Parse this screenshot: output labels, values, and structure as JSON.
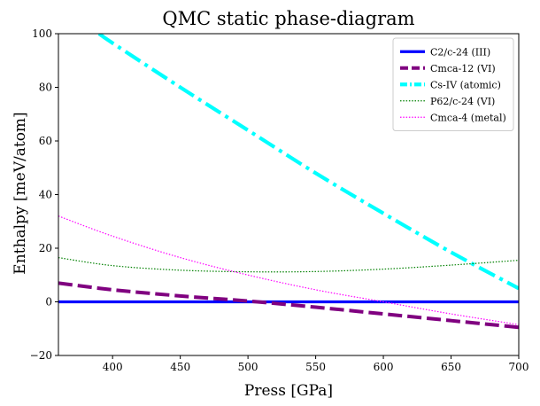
{
  "chart_data": {
    "type": "line",
    "title": "QMC static phase-diagram",
    "xlabel": "Press [GPa]",
    "ylabel": "Enthalpy [meV/atom]",
    "xlim": [
      360,
      700
    ],
    "ylim": [
      -20,
      100
    ],
    "xticks": [
      400,
      450,
      500,
      550,
      600,
      650,
      700
    ],
    "yticks": [
      -20,
      0,
      20,
      40,
      60,
      80,
      100
    ],
    "legend_position": "top-right",
    "series": [
      {
        "name": "C2/c-24 (III)",
        "color": "#0000ff",
        "style": "solid",
        "x": [
          360,
          700
        ],
        "y": [
          0,
          0
        ]
      },
      {
        "name": "Cmca-12 (VI)",
        "color": "#800080",
        "style": "dashed",
        "x": [
          360,
          400,
          450,
          500,
          550,
          600,
          650,
          700
        ],
        "y": [
          7,
          4.5,
          2.2,
          0.3,
          -2,
          -4.5,
          -7,
          -9.5
        ]
      },
      {
        "name": "Cs-IV (atomic)",
        "color": "#00ffff",
        "style": "dashdot",
        "x": [
          390,
          400,
          450,
          500,
          550,
          600,
          650,
          700
        ],
        "y": [
          100,
          96.5,
          80,
          64,
          48,
          33,
          18.5,
          5
        ]
      },
      {
        "name": "P62/c-24 (VI)",
        "color": "#008000",
        "style": "dotted",
        "x": [
          360,
          400,
          450,
          500,
          550,
          600,
          650,
          700
        ],
        "y": [
          16.5,
          13.5,
          11.8,
          11.2,
          11.3,
          12.2,
          13.7,
          15.5
        ]
      },
      {
        "name": "Cmca-4 (metal)",
        "color": "#ff00ff",
        "style": "dotted",
        "x": [
          360,
          400,
          450,
          500,
          550,
          600,
          650,
          700
        ],
        "y": [
          32,
          24.5,
          16.5,
          10,
          4.5,
          0,
          -4.5,
          -8.5
        ]
      }
    ]
  }
}
